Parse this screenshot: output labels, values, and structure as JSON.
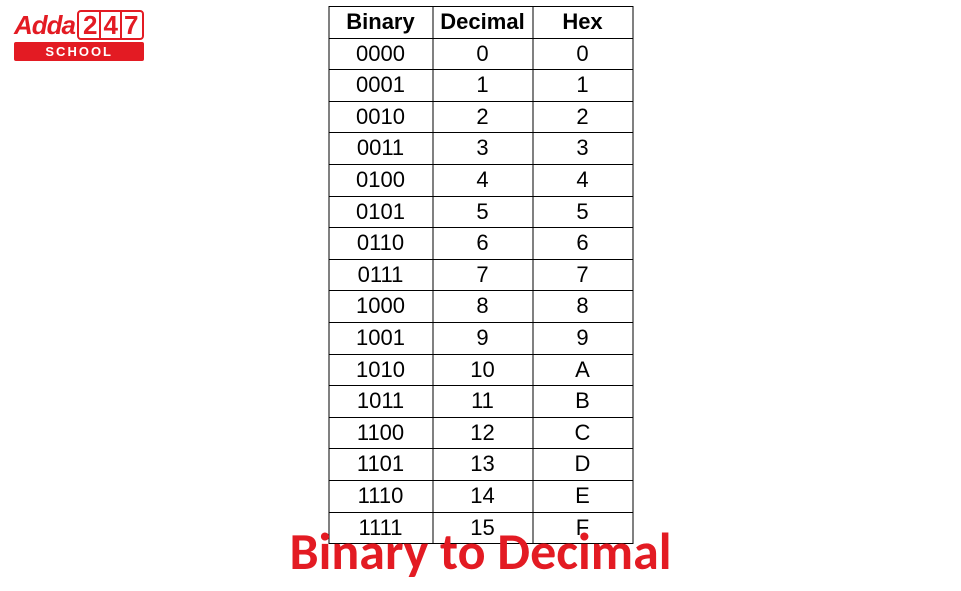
{
  "logo": {
    "text1": "Adda",
    "d2": "2",
    "d4": "4",
    "d7": "7",
    "school": "SCHOOL"
  },
  "table": {
    "headers": {
      "binary": "Binary",
      "decimal": "Decimal",
      "hex": "Hex"
    },
    "columns_width": {
      "binary": 104,
      "decimal": 100,
      "hex": 100
    },
    "rows": [
      {
        "binary": "0000",
        "decimal": "0",
        "hex": "0"
      },
      {
        "binary": "0001",
        "decimal": "1",
        "hex": "1"
      },
      {
        "binary": "0010",
        "decimal": "2",
        "hex": "2"
      },
      {
        "binary": "0011",
        "decimal": "3",
        "hex": "3"
      },
      {
        "binary": "0100",
        "decimal": "4",
        "hex": "4"
      },
      {
        "binary": "0101",
        "decimal": "5",
        "hex": "5"
      },
      {
        "binary": "0110",
        "decimal": "6",
        "hex": "6"
      },
      {
        "binary": "0111",
        "decimal": "7",
        "hex": "7"
      },
      {
        "binary": "1000",
        "decimal": "8",
        "hex": "8"
      },
      {
        "binary": "1001",
        "decimal": "9",
        "hex": "9"
      },
      {
        "binary": "1010",
        "decimal": "10",
        "hex": "A"
      },
      {
        "binary": "1011",
        "decimal": "11",
        "hex": "B"
      },
      {
        "binary": "1100",
        "decimal": "12",
        "hex": "C"
      },
      {
        "binary": "1101",
        "decimal": "13",
        "hex": "D"
      },
      {
        "binary": "1110",
        "decimal": "14",
        "hex": "E"
      },
      {
        "binary": "1111",
        "decimal": "15",
        "hex": "F"
      }
    ]
  },
  "title": "Binary to Decimal",
  "colors": {
    "brand_red": "#e31b23",
    "border": "#000000",
    "background": "#ffffff",
    "logo_text_on_red": "#ffffff"
  },
  "typography": {
    "title_fontsize": 52,
    "table_fontsize": 22,
    "logo_top_fontsize": 26,
    "logo_school_fontsize": 13
  }
}
